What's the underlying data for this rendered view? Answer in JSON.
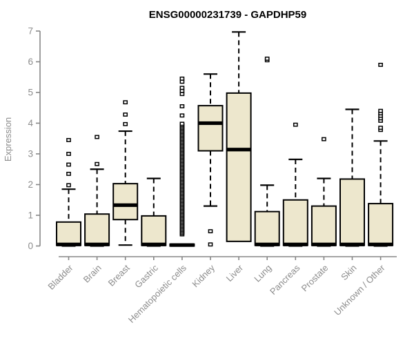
{
  "title": "ENSG00000231739 - GAPDHP59",
  "colors": {
    "background": "#ffffff",
    "box_fill": "#EDE7CD",
    "box_stroke": "#000000",
    "median": "#000000",
    "whisker": "#000000",
    "outlier_fill": "#ffffff",
    "axis": "#868686",
    "tick_text": "#8c8c8c",
    "title_text": "#000000"
  },
  "chart_data": {
    "type": "boxplot",
    "title": "ENSG00000231739 - GAPDHP59",
    "xlabel": "",
    "ylabel": "Expression",
    "ylim": [
      0,
      7
    ],
    "yticks": [
      "0",
      "1",
      "2",
      "3",
      "4",
      "5",
      "6",
      "7"
    ],
    "grid": false,
    "legend": false,
    "categories": [
      "Bladder",
      "Brain",
      "Breast",
      "Gastric",
      "Hematopoietic cells",
      "Kidney",
      "Liver",
      "Lung",
      "Pancreas",
      "Prostate",
      "Skin",
      "Unknown / Other"
    ],
    "boxes": [
      {
        "category": "Bladder",
        "whisker_low": 0,
        "q1": 0.02,
        "median": 0.05,
        "q3": 0.78,
        "whisker_high": 1.85,
        "outliers": [
          1.98,
          2.35,
          2.65,
          3.0,
          3.45
        ]
      },
      {
        "category": "Brain",
        "whisker_low": 0,
        "q1": 0.02,
        "median": 0.05,
        "q3": 1.04,
        "whisker_high": 2.5,
        "outliers": [
          2.67,
          3.55
        ]
      },
      {
        "category": "Breast",
        "whisker_low": 0.03,
        "q1": 0.86,
        "median": 1.33,
        "q3": 2.03,
        "whisker_high": 3.74,
        "outliers": [
          3.97,
          4.28,
          4.68
        ]
      },
      {
        "category": "Gastric",
        "whisker_low": 0,
        "q1": 0.02,
        "median": 0.05,
        "q3": 0.98,
        "whisker_high": 2.2,
        "outliers": []
      },
      {
        "category": "Hematopoietic cells",
        "whisker_low": 0,
        "q1": 0,
        "median": 0.03,
        "q3": 0.06,
        "whisker_high": 0.06,
        "outliers": [
          4.25,
          4.55,
          4.95,
          5.05,
          5.15,
          5.35,
          5.45
        ],
        "dense_outliers": {
          "from": 0.38,
          "to": 3.98,
          "step": 0.045
        }
      },
      {
        "category": "Kidney",
        "whisker_low": 1.3,
        "q1": 3.1,
        "median": 4.0,
        "q3": 4.57,
        "whisker_high": 5.6,
        "outliers": [
          0.48,
          0.05
        ]
      },
      {
        "category": "Liver",
        "whisker_low": 0.15,
        "q1": 0.15,
        "median": 3.14,
        "q3": 4.98,
        "whisker_high": 6.97,
        "outliers": []
      },
      {
        "category": "Lung",
        "whisker_low": 0,
        "q1": 0.02,
        "median": 0.05,
        "q3": 1.12,
        "whisker_high": 1.98,
        "outliers": [
          6.05,
          6.1
        ]
      },
      {
        "category": "Pancreas",
        "whisker_low": 0,
        "q1": 0.02,
        "median": 0.05,
        "q3": 1.5,
        "whisker_high": 2.82,
        "outliers": [
          3.95
        ]
      },
      {
        "category": "Prostate",
        "whisker_low": 0,
        "q1": 0.02,
        "median": 0.05,
        "q3": 1.3,
        "whisker_high": 2.2,
        "outliers": [
          3.48
        ]
      },
      {
        "category": "Skin",
        "whisker_low": 0,
        "q1": 0.02,
        "median": 0.05,
        "q3": 2.18,
        "whisker_high": 4.45,
        "outliers": []
      },
      {
        "category": "Unknown / Other",
        "whisker_low": 0,
        "q1": 0.02,
        "median": 0.05,
        "q3": 1.38,
        "whisker_high": 3.42,
        "outliers": [
          3.78,
          3.85,
          4.08,
          4.16,
          4.24,
          4.32,
          4.4,
          5.9
        ]
      }
    ]
  }
}
